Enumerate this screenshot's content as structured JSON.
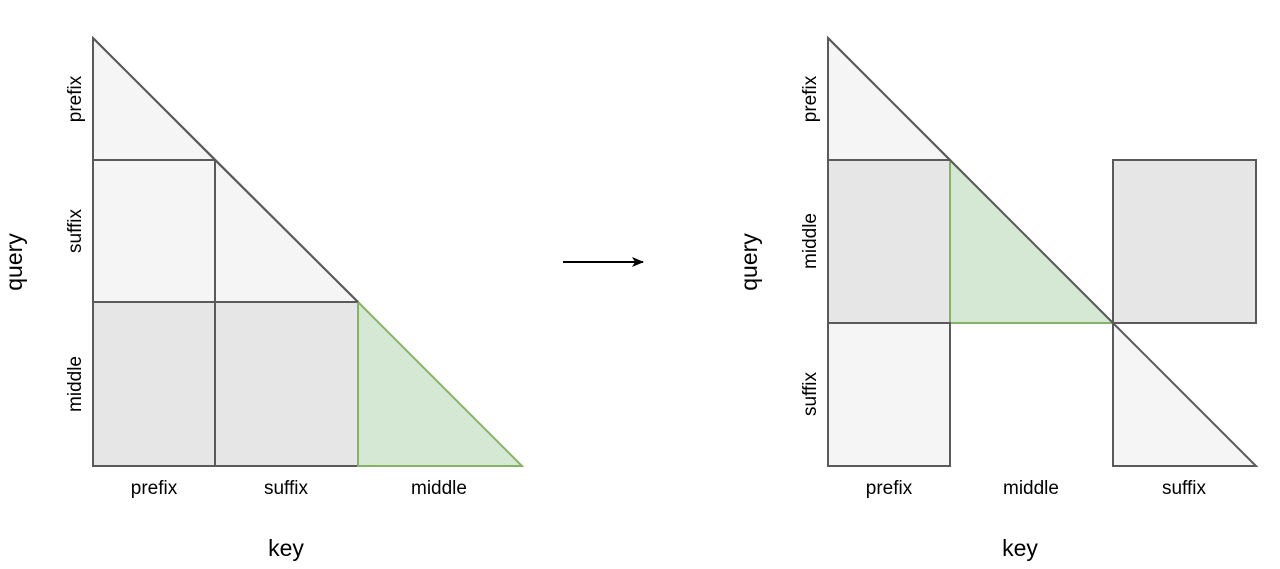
{
  "colors": {
    "light": "#f5f5f5",
    "medium": "#e6e6e6",
    "green": "#d5e8d4",
    "green_stroke": "#82b366",
    "stroke": "#5a5a5a"
  },
  "left_diagram": {
    "y_axis_label": "query",
    "x_axis_label": "key",
    "row_labels": [
      "prefix",
      "suffix",
      "middle"
    ],
    "col_labels": [
      "prefix",
      "suffix",
      "middle"
    ]
  },
  "right_diagram": {
    "y_axis_label": "query",
    "x_axis_label": "key",
    "row_labels": [
      "prefix",
      "middle",
      "suffix"
    ],
    "col_labels": [
      "prefix",
      "middle",
      "suffix"
    ]
  },
  "arrow": "transform-arrow"
}
